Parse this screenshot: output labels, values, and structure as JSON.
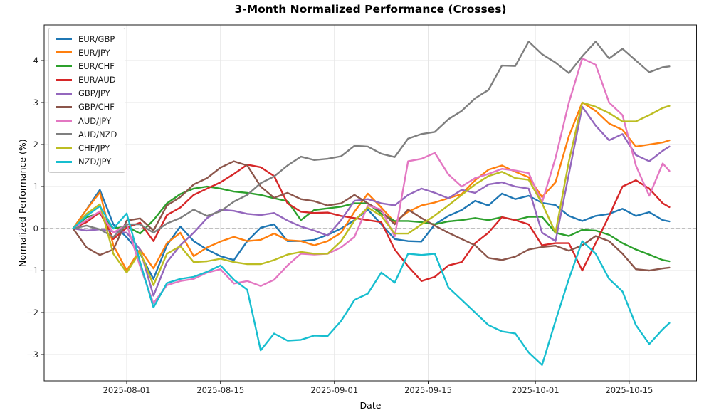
{
  "chart_data": {
    "type": "line",
    "title": "3-Month Normalized Performance (Crosses)",
    "xlabel": "Date",
    "ylabel": "Normalized Performance (%)",
    "legend_position": "upper-left",
    "grid": true,
    "zero_line_dashed": true,
    "x_axis": {
      "start_date": "2025-07-24",
      "end_date": "2025-10-21",
      "tick_days": [
        8,
        22,
        39,
        53,
        69,
        83
      ],
      "tick_labels": [
        "2025-08-01",
        "2025-08-15",
        "2025-09-01",
        "2025-09-15",
        "2025-10-01",
        "2025-10-15"
      ]
    },
    "y_axis": {
      "tick_values": [
        4,
        3,
        2,
        1,
        0,
        -1,
        -2,
        -3
      ],
      "tick_labels": [
        "4",
        "3",
        "2",
        "1",
        "0",
        "−1",
        "−2",
        "−3"
      ],
      "ylim": [
        -3.63,
        4.85
      ]
    },
    "xlim_days": [
      -4.3,
      93
    ],
    "sample_days": [
      0,
      2,
      4,
      6,
      8,
      10,
      12,
      14,
      16,
      18,
      20,
      22,
      24,
      26,
      28,
      30,
      32,
      34,
      36,
      38,
      40,
      42,
      44,
      46,
      48,
      50,
      52,
      54,
      56,
      58,
      60,
      62,
      64,
      66,
      68,
      70,
      72,
      74,
      76,
      78,
      80,
      82,
      84,
      86,
      88,
      89
    ],
    "series": [
      {
        "name": "EUR/GBP",
        "color": "#1f77b4",
        "values": [
          0,
          0.45,
          0.92,
          0.1,
          -0.21,
          -0.6,
          -1.2,
          -0.4,
          0.05,
          -0.3,
          -0.5,
          -0.66,
          -0.75,
          -0.3,
          0.02,
          0.1,
          -0.3,
          -0.3,
          -0.27,
          -0.15,
          0,
          0.2,
          0.45,
          0.1,
          -0.25,
          -0.3,
          -0.31,
          0.1,
          0.3,
          0.44,
          0.66,
          0.55,
          0.83,
          0.7,
          0.78,
          0.61,
          0.56,
          0.3,
          0.18,
          0.3,
          0.35,
          0.47,
          0.3,
          0.39,
          0.2,
          0.17
        ]
      },
      {
        "name": "EUR/JPY",
        "color": "#ff7f0e",
        "values": [
          0,
          0.45,
          0.86,
          -0.4,
          -1,
          -0.5,
          -0.95,
          -0.35,
          -0.1,
          -0.66,
          -0.45,
          -0.31,
          -0.2,
          -0.3,
          -0.27,
          -0.12,
          -0.28,
          -0.3,
          -0.4,
          -0.3,
          -0.1,
          0.4,
          0.83,
          0.5,
          0.15,
          0.4,
          0.55,
          0.62,
          0.72,
          0.82,
          1.15,
          1.4,
          1.5,
          1.35,
          1.22,
          0.75,
          1.1,
          2.2,
          3,
          2.8,
          2.5,
          2.35,
          1.95,
          2,
          2.05,
          2.1
        ]
      },
      {
        "name": "EUR/CHF",
        "color": "#2ca02c",
        "values": [
          0,
          0.27,
          0.36,
          0,
          0.05,
          -0.12,
          0.2,
          0.6,
          0.82,
          0.95,
          1,
          0.95,
          0.88,
          0.85,
          0.8,
          0.72,
          0.65,
          0.2,
          0.44,
          0.48,
          0.52,
          0.6,
          0.6,
          0.35,
          0.18,
          0.18,
          0.15,
          0.1,
          0.17,
          0.2,
          0.25,
          0.2,
          0.27,
          0.2,
          0.28,
          0.28,
          -0.1,
          -0.18,
          -0.03,
          -0.05,
          -0.15,
          -0.35,
          -0.5,
          -0.62,
          -0.75,
          -0.78
        ]
      },
      {
        "name": "EUR/AUD",
        "color": "#d62728",
        "values": [
          0,
          0.15,
          0.39,
          -0.25,
          0.02,
          0.14,
          -0.3,
          0.32,
          0.5,
          0.8,
          0.95,
          1.1,
          1.3,
          1.52,
          1.46,
          1.25,
          0.6,
          0.4,
          0.37,
          0.38,
          0.3,
          0.25,
          0.2,
          0.15,
          -0.5,
          -0.9,
          -1.25,
          -1.15,
          -0.88,
          -0.8,
          -0.35,
          -0.1,
          0.27,
          0.2,
          0.1,
          -0.4,
          -0.35,
          -0.35,
          -1,
          -0.35,
          0.3,
          1,
          1.15,
          0.95,
          0.6,
          0.51
        ]
      },
      {
        "name": "GBP/JPY",
        "color": "#9467bd",
        "values": [
          0,
          -0.05,
          -0.02,
          -0.07,
          -0.1,
          -0.5,
          -1.6,
          -0.8,
          -0.4,
          -0.1,
          0.25,
          0.45,
          0.42,
          0.35,
          0.32,
          0.37,
          0.19,
          0.05,
          -0.05,
          -0.17,
          0.2,
          0.66,
          0.7,
          0.6,
          0.55,
          0.8,
          0.95,
          0.85,
          0.72,
          0.92,
          0.85,
          1.05,
          1.1,
          1,
          0.95,
          -0.1,
          -0.3,
          1.3,
          2.9,
          2.45,
          2.1,
          2.25,
          1.75,
          1.6,
          1.85,
          1.95
        ]
      },
      {
        "name": "GBP/CHF",
        "color": "#8c564b",
        "values": [
          0,
          -0.45,
          -0.63,
          -0.5,
          0.19,
          0.24,
          -0.05,
          0.55,
          0.75,
          1.05,
          1.2,
          1.45,
          1.6,
          1.5,
          1,
          0.73,
          0.85,
          0.7,
          0.65,
          0.55,
          0.6,
          0.8,
          0.6,
          0.41,
          0.1,
          0.45,
          0.25,
          0.07,
          -0.1,
          -0.25,
          -0.4,
          -0.7,
          -0.75,
          -0.67,
          -0.5,
          -0.44,
          -0.41,
          -0.53,
          -0.4,
          -0.18,
          -0.3,
          -0.6,
          -0.97,
          -1,
          -0.95,
          -0.93
        ]
      },
      {
        "name": "AUD/JPY",
        "color": "#e377c2",
        "values": [
          0,
          0.2,
          0.41,
          -0.1,
          0.1,
          -0.9,
          -1.78,
          -1.35,
          -1.25,
          -1.2,
          -1.05,
          -0.97,
          -1.31,
          -1.25,
          -1.37,
          -1.22,
          -0.88,
          -0.6,
          -0.62,
          -0.6,
          -0.45,
          -0.2,
          0.55,
          0.45,
          -0.19,
          1.6,
          1.66,
          1.8,
          1.29,
          1,
          1.2,
          1.3,
          1.42,
          1.38,
          1.32,
          0.62,
          1.68,
          3,
          4.05,
          3.9,
          3,
          2.7,
          1.5,
          0.78,
          1.55,
          1.37
        ]
      },
      {
        "name": "AUD/NZD",
        "color": "#7f7f7f",
        "values": [
          0,
          0.07,
          -0.02,
          -0.2,
          0.1,
          0.1,
          -0.1,
          0.12,
          0.25,
          0.45,
          0.3,
          0.41,
          0.64,
          0.8,
          1.08,
          1.24,
          1.5,
          1.71,
          1.63,
          1.66,
          1.72,
          1.97,
          1.95,
          1.78,
          1.7,
          2.14,
          2.25,
          2.3,
          2.6,
          2.8,
          3.1,
          3.3,
          3.88,
          3.87,
          4.45,
          4.15,
          3.95,
          3.7,
          4.1,
          4.45,
          4.05,
          4.28,
          4,
          3.72,
          3.84,
          3.86
        ]
      },
      {
        "name": "CHF/JPY",
        "color": "#bcbd22",
        "values": [
          0,
          0.35,
          0.58,
          -0.6,
          -1.05,
          -0.55,
          -1.35,
          -0.6,
          -0.42,
          -0.8,
          -0.78,
          -0.72,
          -0.8,
          -0.85,
          -0.85,
          -0.75,
          -0.62,
          -0.56,
          -0.6,
          -0.6,
          -0.3,
          0.19,
          0.5,
          0.3,
          -0.12,
          -0.12,
          0.1,
          0.31,
          0.55,
          0.8,
          1.05,
          1.25,
          1.35,
          1.2,
          1.16,
          0.6,
          -0.1,
          1.6,
          3,
          2.9,
          2.75,
          2.55,
          2.55,
          2.7,
          2.87,
          2.92
        ]
      },
      {
        "name": "NZD/JPY",
        "color": "#17becf",
        "values": [
          0,
          0.3,
          0.53,
          0,
          0.36,
          -0.8,
          -1.88,
          -1.3,
          -1.2,
          -1.15,
          -1.03,
          -0.88,
          -1.22,
          -1.46,
          -2.9,
          -2.5,
          -2.67,
          -2.65,
          -2.55,
          -2.56,
          -2.2,
          -1.7,
          -1.55,
          -1.05,
          -1.29,
          -0.6,
          -0.63,
          -0.6,
          -1.4,
          -1.7,
          -2,
          -2.3,
          -2.45,
          -2.5,
          -2.95,
          -3.25,
          -2.2,
          -1.2,
          -0.3,
          -0.6,
          -1.2,
          -1.5,
          -2.3,
          -2.75,
          -2.4,
          -2.25
        ]
      }
    ],
    "style": {
      "grid_color": "#e6e6e6",
      "spine_color": "#1a1a1a",
      "tick_text_color": "#262626",
      "zero_line_color": "#808080",
      "line_width": 2.4
    }
  }
}
